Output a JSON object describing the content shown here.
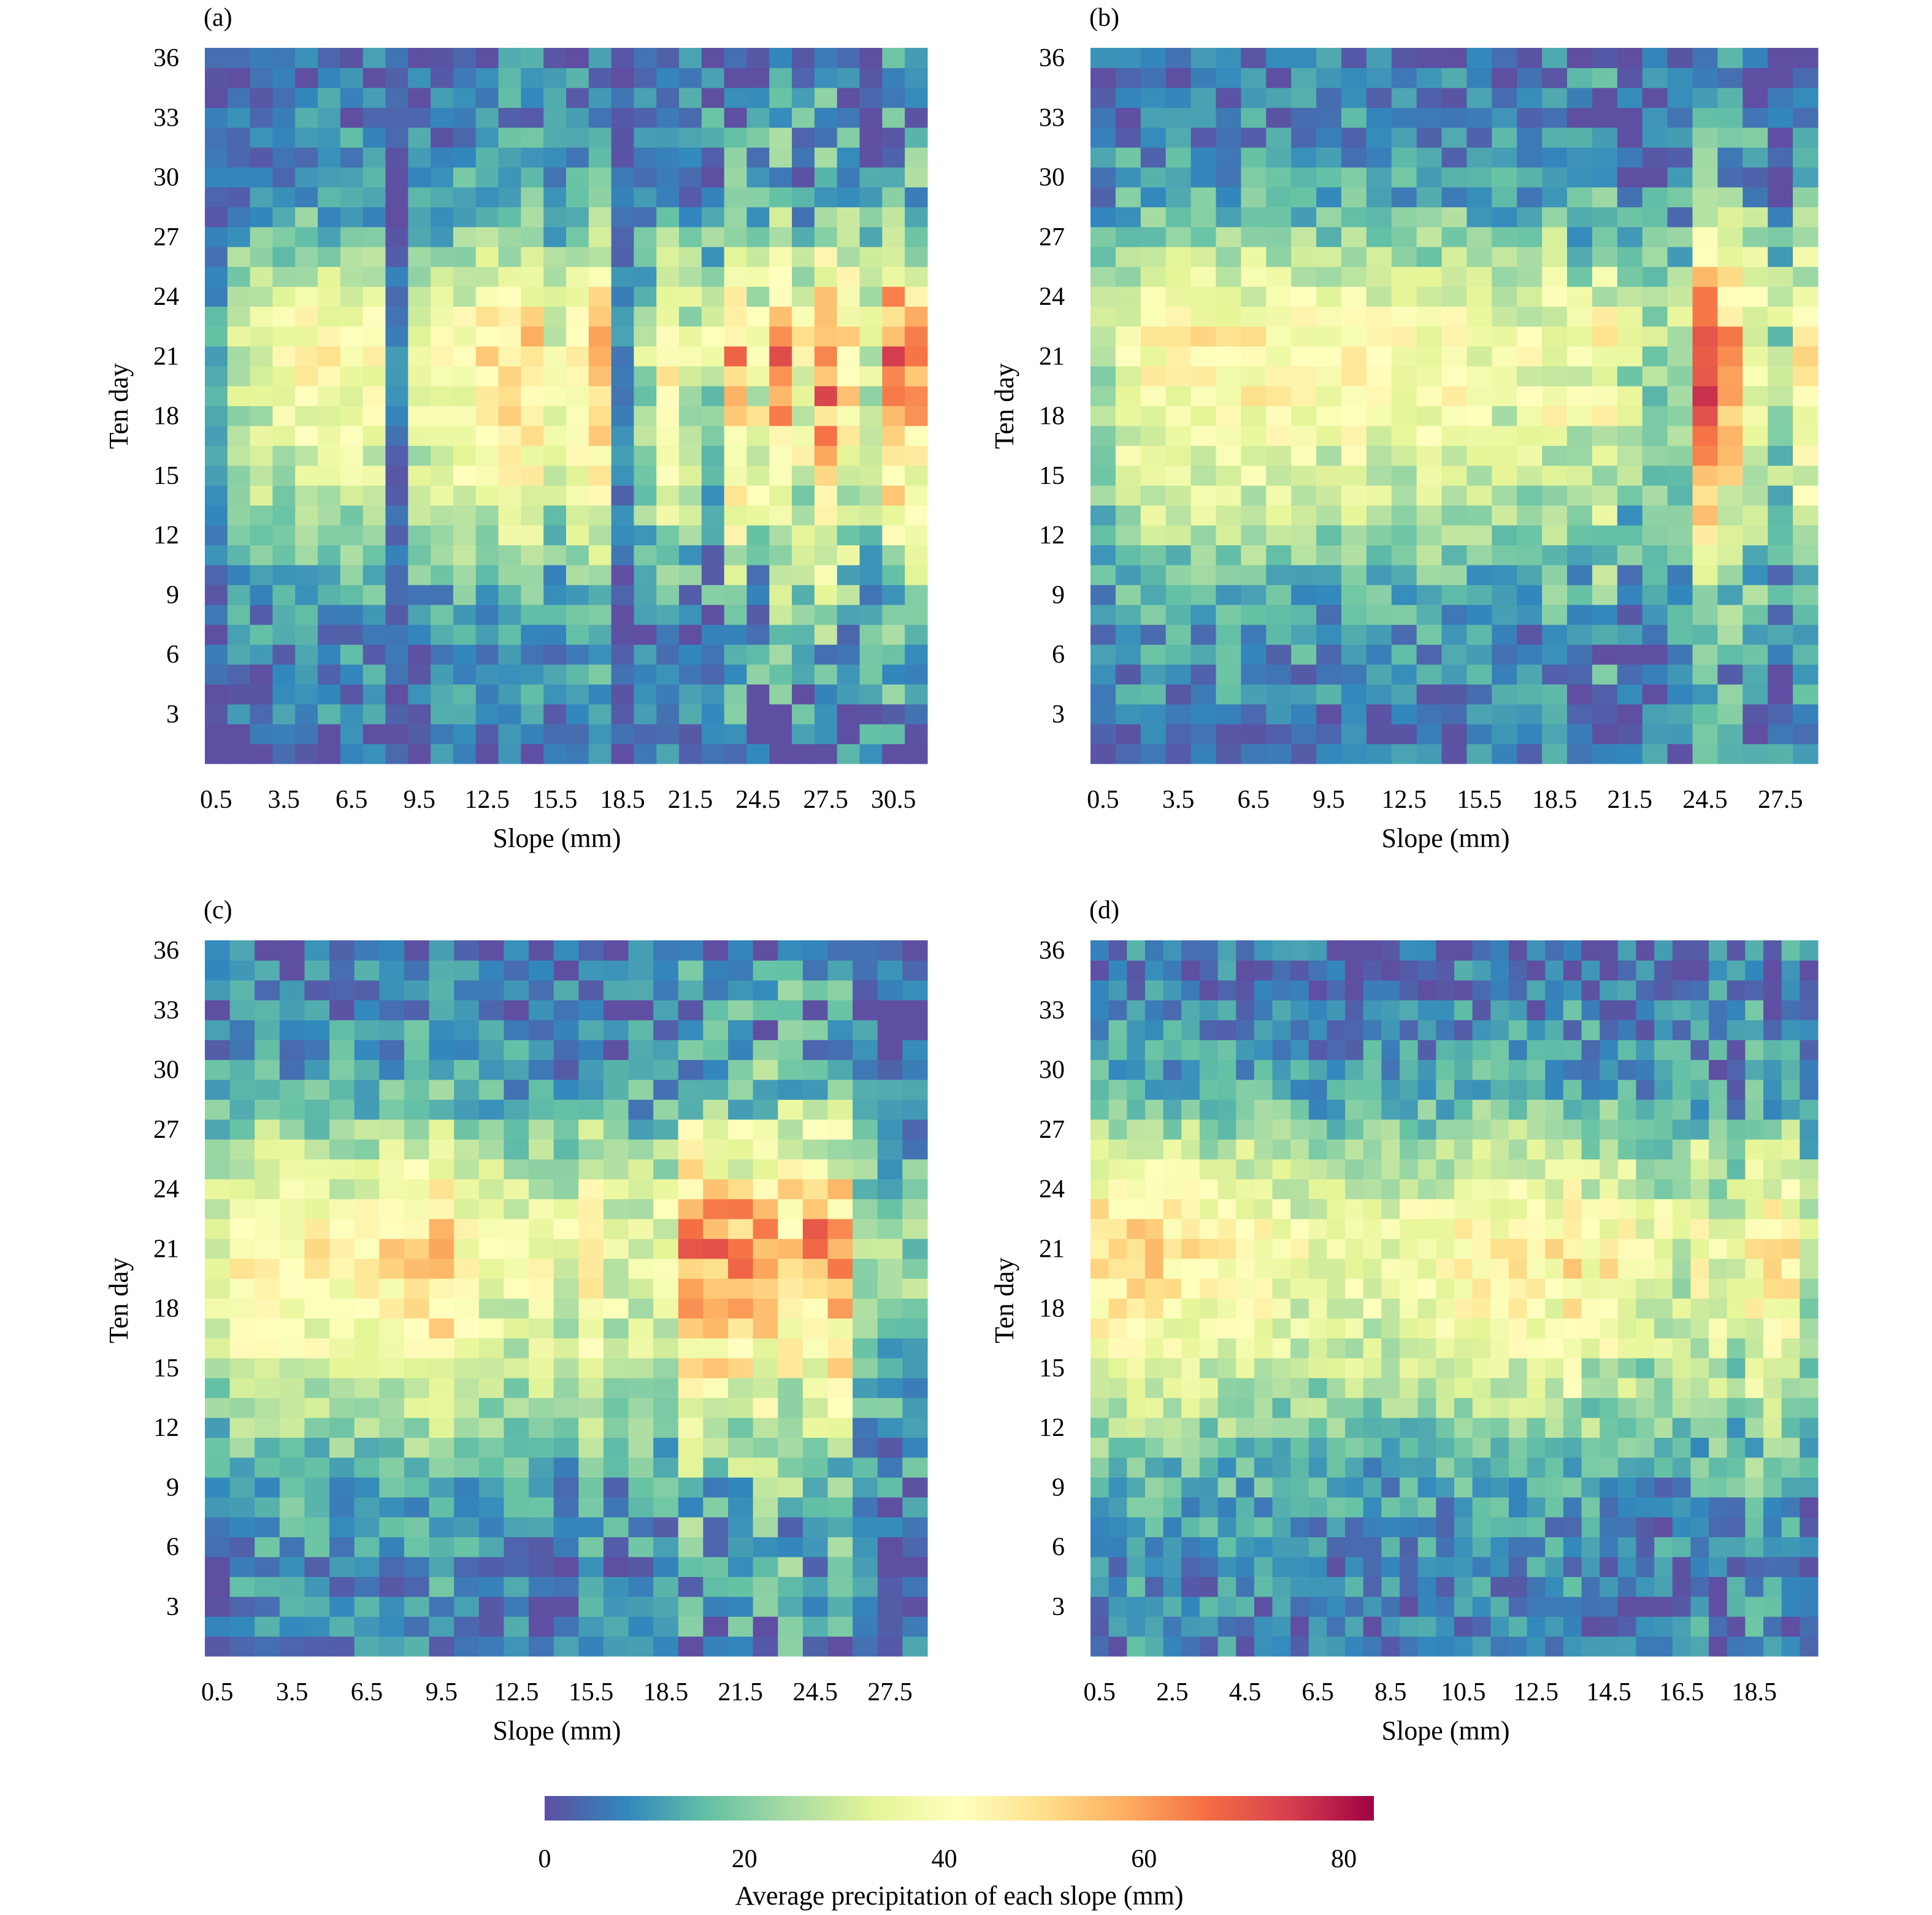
{
  "colorbar": {
    "stops": [
      "#5e4fa2",
      "#3288bd",
      "#66c2a5",
      "#abdda4",
      "#e6f598",
      "#ffffbf",
      "#fee08b",
      "#fdae61",
      "#f46d43",
      "#d53e4f",
      "#9e0142"
    ],
    "min": 0,
    "max": 83,
    "ticks": [
      0,
      20,
      40,
      60,
      80
    ],
    "tick_labels": [
      "0",
      "20",
      "40",
      "60",
      "80"
    ],
    "label": "Average precipitation of each slope (mm)"
  },
  "chart_data": [
    {
      "type": "heatmap",
      "panel_label": "(a)",
      "xlabel": "Slope (mm)",
      "ylabel": "Ten day",
      "x_start": 0.5,
      "x_step": 1,
      "x_count": 32,
      "x_ticks": [
        "0.5",
        "3.5",
        "6.5",
        "9.5",
        "12.5",
        "15.5",
        "18.5",
        "21.5",
        "24.5",
        "27.5",
        "30.5"
      ],
      "y_ticks": [
        "3",
        "6",
        "9",
        "12",
        "15",
        "18",
        "21",
        "24",
        "27",
        "30",
        "33",
        "36"
      ],
      "y_range": [
        1,
        36
      ],
      "profile": [
        6,
        8,
        10,
        12,
        16,
        24,
        32,
        38,
        42,
        45,
        47,
        49,
        48,
        44,
        38,
        33,
        28,
        23,
        18,
        15,
        12,
        10,
        8,
        6
      ],
      "profile_days": [
        1,
        3,
        5,
        7,
        9,
        11,
        13,
        15,
        17,
        19,
        20,
        21,
        22,
        23,
        24,
        25,
        26,
        27,
        28,
        29,
        30,
        32,
        34,
        36
      ],
      "column_factor": [
        0.3,
        0.65,
        0.7,
        0.75,
        0.85,
        0.85,
        0.8,
        0.8,
        0.15,
        0.75,
        0.8,
        0.9,
        0.95,
        1.05,
        1.05,
        0.7,
        0.95,
        1.15,
        0.2,
        0.55,
        0.9,
        0.7,
        0.6,
        1.15,
        0.85,
        1.25,
        0.85,
        1.35,
        1.0,
        0.7,
        1.35,
        1.15
      ],
      "spread": [
        0.6,
        1.0,
        1.0,
        1.0,
        1.0,
        1.0,
        1.0,
        1.0,
        0.6,
        1.0,
        1.0,
        1.0,
        1.0,
        1.0,
        1.0,
        1.0,
        1.0,
        1.0,
        0.6,
        1.1,
        1.2,
        1.4,
        1.6,
        1.6,
        1.8,
        1.6,
        1.6,
        1.6,
        1.6,
        1.5,
        1.6,
        1.6
      ],
      "seed": 11
    },
    {
      "type": "heatmap",
      "panel_label": "(b)",
      "xlabel": "Slope (mm)",
      "ylabel": "Ten day",
      "x_start": 0.5,
      "x_step": 1,
      "x_count": 29,
      "x_ticks": [
        "0.5",
        "3.5",
        "6.5",
        "9.5",
        "12.5",
        "15.5",
        "18.5",
        "21.5",
        "24.5",
        "27.5"
      ],
      "y_ticks": [
        "3",
        "6",
        "9",
        "12",
        "15",
        "18",
        "21",
        "24",
        "27",
        "30",
        "33",
        "36"
      ],
      "y_range": [
        1,
        36
      ],
      "profile": [
        8,
        9,
        10,
        12,
        16,
        24,
        31,
        36,
        40,
        44,
        45,
        46,
        46,
        43,
        38,
        34,
        29,
        25,
        20,
        16,
        13,
        10,
        8,
        7
      ],
      "profile_days": [
        1,
        3,
        5,
        7,
        9,
        11,
        13,
        15,
        17,
        19,
        20,
        21,
        22,
        23,
        24,
        25,
        26,
        27,
        28,
        29,
        30,
        32,
        34,
        36
      ],
      "column_factor": [
        0.6,
        0.85,
        0.9,
        0.9,
        0.95,
        0.95,
        0.95,
        0.95,
        0.9,
        0.85,
        1.0,
        0.9,
        0.85,
        0.85,
        0.9,
        0.8,
        0.75,
        0.8,
        0.85,
        0.7,
        0.9,
        0.6,
        0.55,
        0.6,
        1.6,
        1.2,
        0.9,
        0.55,
        0.95
      ],
      "spread": [
        1.0,
        1.0,
        1.0,
        1.0,
        1.0,
        1.0,
        1.0,
        1.0,
        1.0,
        1.0,
        1.0,
        1.0,
        1.0,
        1.0,
        1.0,
        1.0,
        1.0,
        1.1,
        1.3,
        1.3,
        1.4,
        1.2,
        1.2,
        1.2,
        0.8,
        1.5,
        1.5,
        1.5,
        1.3
      ],
      "seed": 23
    },
    {
      "type": "heatmap",
      "panel_label": "(c)",
      "xlabel": "Slope (mm)",
      "ylabel": "Ten day",
      "x_start": 0.5,
      "x_step": 1,
      "x_count": 29,
      "x_ticks": [
        "0.5",
        "3.5",
        "6.5",
        "9.5",
        "12.5",
        "15.5",
        "18.5",
        "21.5",
        "24.5",
        "27.5"
      ],
      "y_ticks": [
        "3",
        "6",
        "9",
        "12",
        "15",
        "18",
        "21",
        "24",
        "27",
        "30",
        "33",
        "36"
      ],
      "y_range": [
        1,
        36
      ],
      "profile": [
        7,
        8,
        10,
        12,
        15,
        21,
        27,
        34,
        40,
        44,
        46,
        47,
        46,
        42,
        37,
        33,
        28,
        24,
        19,
        16,
        13,
        10,
        8,
        6
      ],
      "profile_days": [
        1,
        3,
        5,
        7,
        9,
        11,
        13,
        15,
        17,
        19,
        20,
        21,
        22,
        23,
        24,
        25,
        26,
        27,
        28,
        29,
        30,
        32,
        34,
        36
      ],
      "column_factor": [
        0.75,
        0.95,
        1.0,
        0.95,
        0.95,
        0.9,
        0.95,
        1.0,
        1.05,
        1.15,
        0.85,
        0.8,
        0.8,
        0.85,
        0.75,
        1.05,
        0.75,
        0.75,
        0.8,
        1.25,
        1.3,
        1.25,
        1.2,
        1.15,
        1.25,
        1.2,
        0.5,
        0.45,
        0.5
      ],
      "spread": [
        1.0,
        1.0,
        1.0,
        1.0,
        1.0,
        1.0,
        1.0,
        1.0,
        1.0,
        1.0,
        1.0,
        1.0,
        1.0,
        1.0,
        1.0,
        0.9,
        1.2,
        1.2,
        1.2,
        1.6,
        1.7,
        1.6,
        1.7,
        1.8,
        1.6,
        1.6,
        1.2,
        1.2,
        1.2
      ],
      "seed": 37
    },
    {
      "type": "heatmap",
      "panel_label": "(d)",
      "xlabel": "Slope (mm)",
      "ylabel": "Ten day",
      "x_start": 0.5,
      "x_step": 0.5,
      "x_count": 40,
      "x_ticks": [
        "0.5",
        "2.5",
        "4.5",
        "6.5",
        "8.5",
        "10.5",
        "12.5",
        "14.5",
        "16.5",
        "18.5"
      ],
      "y_ticks": [
        "3",
        "6",
        "9",
        "12",
        "15",
        "18",
        "21",
        "24",
        "27",
        "30",
        "33",
        "36"
      ],
      "y_range": [
        1,
        36
      ],
      "profile": [
        7,
        8,
        9,
        11,
        14,
        19,
        25,
        31,
        37,
        41,
        43,
        44,
        42,
        39,
        35,
        31,
        27,
        23,
        18,
        15,
        12,
        9,
        7,
        6
      ],
      "profile_days": [
        1,
        3,
        5,
        7,
        9,
        11,
        13,
        15,
        17,
        19,
        20,
        21,
        22,
        23,
        24,
        25,
        26,
        27,
        28,
        29,
        30,
        32,
        34,
        36
      ],
      "column_factor": [
        1.15,
        1.15,
        1.2,
        1.15,
        1.05,
        1.05,
        1.0,
        1.0,
        1.0,
        1.0,
        0.9,
        0.85,
        0.85,
        0.85,
        0.9,
        0.85,
        0.85,
        0.9,
        0.9,
        0.9,
        1.0,
        1.05,
        1.0,
        1.05,
        1.0,
        1.0,
        1.1,
        0.95,
        1.0,
        0.9,
        0.8,
        0.8,
        0.75,
        1.0,
        0.8,
        0.75,
        1.05,
        1.0,
        1.0,
        0.65
      ],
      "spread": [
        1.0,
        1.0,
        1.0,
        1.0,
        1.0,
        1.0,
        1.0,
        1.0,
        1.0,
        1.0,
        1.0,
        1.0,
        1.0,
        1.0,
        1.0,
        1.0,
        1.0,
        1.0,
        1.0,
        1.0,
        1.0,
        1.0,
        1.0,
        1.0,
        1.0,
        1.0,
        1.3,
        1.4,
        1.2,
        1.2,
        1.2,
        1.2,
        1.2,
        1.4,
        1.3,
        1.3,
        1.3,
        1.3,
        1.3,
        1.2
      ],
      "seed": 53
    }
  ]
}
